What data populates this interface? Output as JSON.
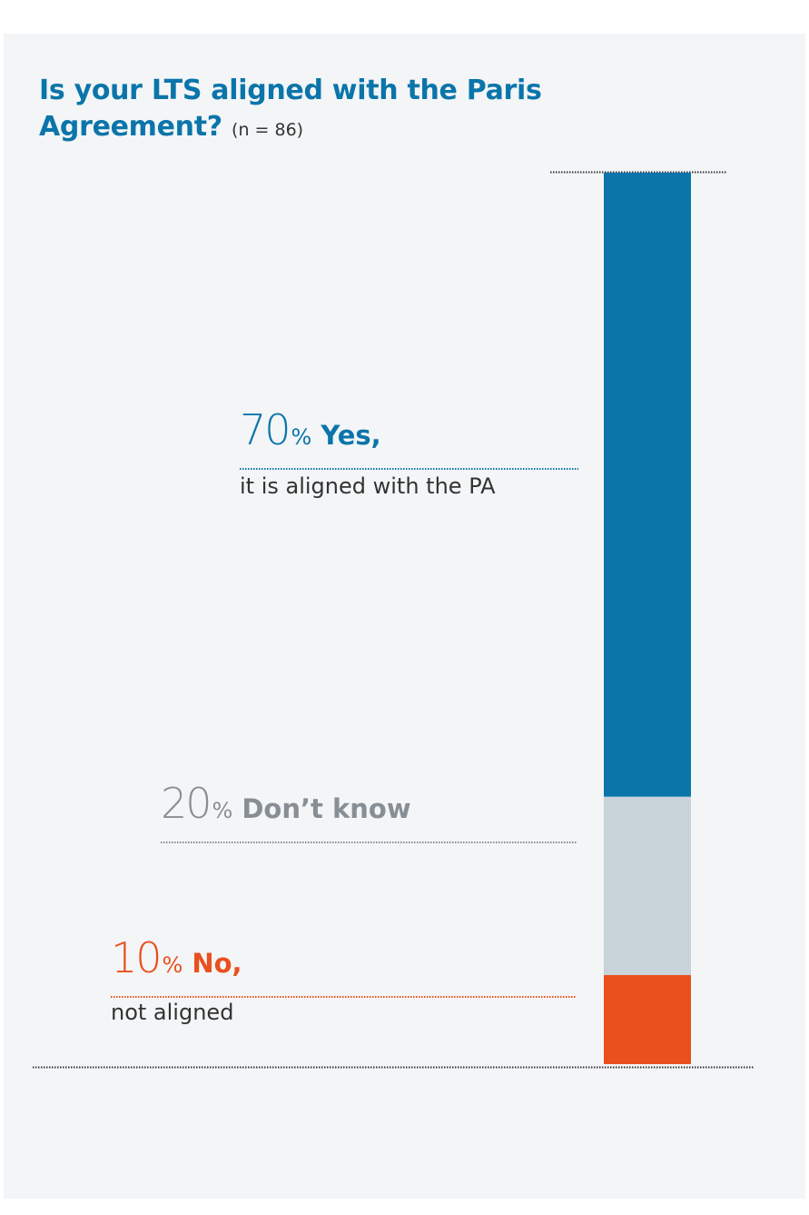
{
  "title": {
    "main": "Is your LTS aligned with the Paris Agreement?",
    "sample": "(n = 86)"
  },
  "colors": {
    "yes": "#0b75aa",
    "dont_know": "#c8d3da",
    "dont_know_text": "#878f95",
    "no": "#e9501e",
    "panel": "#f3f5f7"
  },
  "chart_data": {
    "type": "bar",
    "stacked": true,
    "orientation": "vertical",
    "categories": [
      "Is your LTS aligned with the Paris Agreement?"
    ],
    "ylim": [
      0,
      100
    ],
    "grid": false,
    "series": [
      {
        "name": "No",
        "value": 10,
        "label_pct": "10",
        "label_unit": "%",
        "label_word": "No,",
        "label_sub": "not aligned"
      },
      {
        "name": "Don’t know",
        "value": 20,
        "label_pct": "20",
        "label_unit": "%",
        "label_word": "Don’t know",
        "label_sub": ""
      },
      {
        "name": "Yes",
        "value": 70,
        "label_pct": "70",
        "label_unit": "%",
        "label_word": "Yes,",
        "label_sub": "it is aligned with the PA"
      }
    ]
  }
}
